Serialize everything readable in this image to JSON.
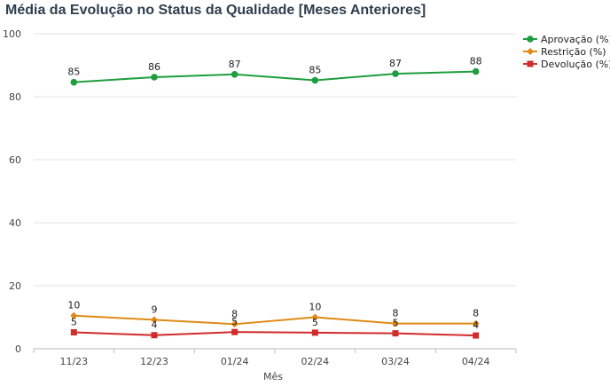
{
  "title": "Média da Evolução no Status da Qualidade [Meses Anteriores]",
  "chart_data": {
    "type": "line",
    "title": "Média da Evolução no Status da Qualidade [Meses Anteriores]",
    "xlabel": "Mês",
    "ylabel": "",
    "ylim": [
      0,
      100
    ],
    "yticks": [
      0,
      20,
      40,
      60,
      80,
      100
    ],
    "grid": true,
    "legend_position": "top-right",
    "categories": [
      "11/23",
      "12/23",
      "01/24",
      "02/24",
      "03/24",
      "04/24"
    ],
    "series": [
      {
        "name": "Aprovação (%)",
        "color": "#1e9e3e",
        "marker": "circle",
        "values": [
          84.6,
          86.2,
          87.1,
          85.2,
          87.3,
          88.0
        ],
        "labels": [
          "85",
          "86",
          "87",
          "85",
          "87",
          "88"
        ]
      },
      {
        "name": "Restrição (%)",
        "color": "#e08a16",
        "marker": "diamond",
        "values": [
          10.5,
          9.2,
          7.8,
          10.0,
          8.0,
          8.0
        ],
        "labels": [
          "10",
          "9",
          "8",
          "10",
          "8",
          "8"
        ]
      },
      {
        "name": "Devolução (%)",
        "color": "#d22b2b",
        "marker": "square",
        "values": [
          5.2,
          4.3,
          5.3,
          5.1,
          4.9,
          4.2
        ],
        "labels": [
          "5",
          "4",
          "5",
          "5",
          "5",
          "4"
        ]
      }
    ]
  }
}
